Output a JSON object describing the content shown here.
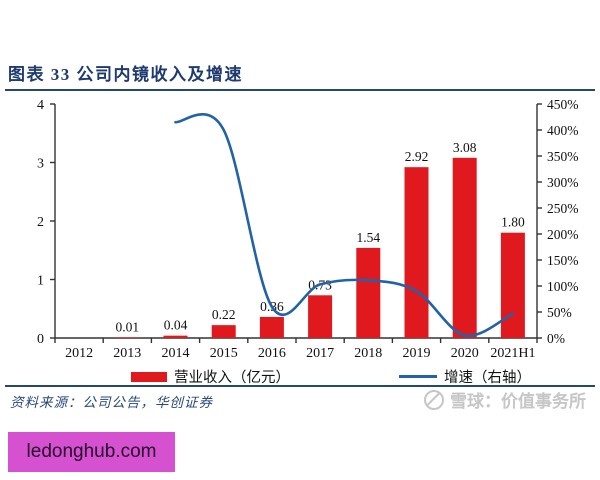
{
  "page": {
    "title": "图表 33  公司内镜收入及增速",
    "source_note": "资料来源：公司公告，华创证券",
    "watermark_text": "雪球：价值事务所",
    "site_badge": "ledonghub.com"
  },
  "colors": {
    "title_navy": "#1e3a6e",
    "divider_navy": "#26476e",
    "bar_red": "#e0191f",
    "line_blue": "#2163a6",
    "axis_black": "#333333",
    "watermark_gray": "#c6c6c6",
    "badge_magenta": "#d551d0"
  },
  "chart_data": {
    "type": "bar+line",
    "title": "公司内镜收入及增速",
    "categories": [
      "2012",
      "2013",
      "2014",
      "2015",
      "2016",
      "2017",
      "2018",
      "2019",
      "2020",
      "2021H1"
    ],
    "series": [
      {
        "name": "营业收入（亿元）",
        "type": "bar",
        "axis": "left",
        "values": [
          0,
          0.01,
          0.04,
          0.22,
          0.36,
          0.73,
          1.54,
          2.92,
          3.08,
          1.8
        ],
        "labels": [
          "",
          "0.01",
          "0.04",
          "0.22",
          "0.36",
          "0.73",
          "1.54",
          "2.92",
          "3.08",
          "1.80"
        ]
      },
      {
        "name": "增速（右轴）",
        "type": "line",
        "axis": "right",
        "unit": "%",
        "values": [
          null,
          null,
          415,
          400,
          60,
          103,
          111,
          90,
          5,
          47
        ]
      }
    ],
    "left_axis": {
      "min": 0,
      "max": 4,
      "ticks": [
        "0",
        "1",
        "2",
        "3",
        "4"
      ]
    },
    "right_axis": {
      "min": "0%",
      "max": "450%",
      "ticks": [
        "0%",
        "50%",
        "100%",
        "150%",
        "200%",
        "250%",
        "300%",
        "350%",
        "400%",
        "450%"
      ]
    },
    "legend_position": "bottom",
    "grid": false
  }
}
